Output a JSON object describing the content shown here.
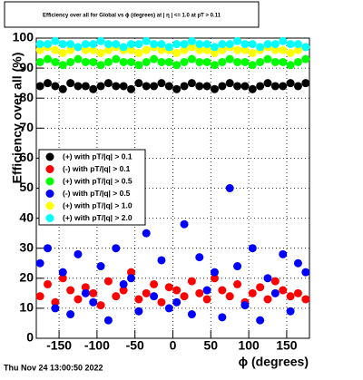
{
  "chart_data": {
    "type": "scatter",
    "title": "Efficiency over all for Global vs ϕ (degrees) at | η | <= 1.0 at pT > 0.11",
    "x_label": "ϕ (degrees)",
    "y_label": "Efficiency over all (%)",
    "footer": "Thu Nov 24 13:00:50 2022",
    "x": [
      -175,
      -165,
      -155,
      -145,
      -135,
      -125,
      -115,
      -105,
      -95,
      -85,
      -75,
      -65,
      -55,
      -45,
      -35,
      -25,
      -15,
      -5,
      5,
      15,
      25,
      35,
      45,
      55,
      65,
      75,
      85,
      95,
      105,
      115,
      125,
      135,
      145,
      155,
      165,
      175
    ],
    "series": [
      {
        "name": "(-) with pT/|q| > 0.1",
        "color": "#ff0000",
        "values": [
          14,
          18,
          12,
          20,
          16,
          13,
          17,
          15,
          11,
          19,
          14,
          16,
          22,
          13,
          15,
          18,
          12,
          17,
          16,
          14,
          19,
          15,
          13,
          20,
          16,
          14,
          18,
          12,
          15,
          17,
          13,
          19,
          16,
          14,
          15,
          13
        ]
      },
      {
        "name": "(-) with pT/|q| > 0.5",
        "color": "#0000ff",
        "values": [
          25,
          30,
          10,
          22,
          8,
          28,
          15,
          12,
          24,
          6,
          30,
          18,
          20,
          9,
          35,
          14,
          26,
          10,
          12,
          38,
          8,
          27,
          16,
          22,
          7,
          50,
          24,
          11,
          30,
          6,
          20,
          15,
          28,
          9,
          25,
          22
        ]
      },
      {
        "name": "(+) with pT/|q| > 0.1",
        "color": "#000000",
        "values": [
          84,
          85,
          84,
          83,
          85,
          84,
          84,
          83,
          84,
          85,
          84,
          84,
          83,
          85,
          84,
          84,
          85,
          84,
          83,
          84,
          85,
          84,
          84,
          83,
          84,
          85,
          84,
          84,
          83,
          84,
          85,
          84,
          84,
          85,
          84,
          85
        ]
      },
      {
        "name": "(+) with pT/|q| > 0.5",
        "color": "#00ff00",
        "values": [
          92,
          93,
          92,
          91,
          92,
          93,
          92,
          92,
          91,
          92,
          93,
          92,
          92,
          91,
          92,
          93,
          92,
          92,
          91,
          92,
          93,
          92,
          92,
          91,
          92,
          93,
          92,
          92,
          91,
          92,
          93,
          92,
          92,
          91,
          92,
          93
        ]
      },
      {
        "name": "(+) with pT/|q| > 1.0",
        "color": "#ffff00",
        "values": [
          96,
          97,
          96,
          95,
          96,
          97,
          96,
          96,
          95,
          96,
          97,
          96,
          96,
          95,
          96,
          97,
          96,
          96,
          95,
          96,
          97,
          96,
          96,
          95,
          96,
          97,
          96,
          96,
          95,
          96,
          97,
          96,
          96,
          95,
          96,
          97
        ]
      },
      {
        "name": "(+) with pT/|q| > 2.0",
        "color": "#00ffff",
        "values": [
          98,
          98,
          99,
          98,
          98,
          97,
          98,
          98,
          99,
          98,
          98,
          97,
          98,
          98,
          99,
          98,
          98,
          97,
          98,
          98,
          99,
          98,
          98,
          97,
          98,
          98,
          99,
          98,
          98,
          97,
          98,
          98,
          99,
          98,
          98,
          97
        ]
      }
    ],
    "xlim": [
      -180,
      180
    ],
    "xticks": [
      -150,
      -100,
      -50,
      0,
      50,
      100,
      150
    ],
    "ylim": [
      0,
      100
    ],
    "yticks": [
      0,
      10,
      20,
      30,
      40,
      50,
      60,
      70,
      80,
      90,
      100
    ],
    "grid": true
  }
}
